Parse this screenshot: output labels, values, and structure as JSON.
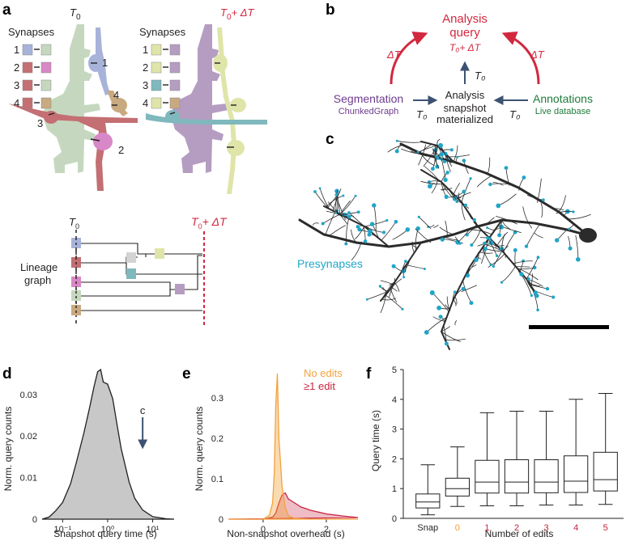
{
  "panel_letters": [
    "a",
    "b",
    "c",
    "d",
    "e",
    "f"
  ],
  "panel_a": {
    "t0_label": "T",
    "t0_sub": "0",
    "t1_label": "T",
    "t1_sub": "0",
    "t1_suffix": "+ ΔT",
    "synapses_title": "Synapses",
    "synapse_numbers": [
      "1",
      "2",
      "3",
      "4"
    ],
    "neuron_callouts": [
      "1",
      "2",
      "3",
      "4"
    ],
    "lineage_label": "Lineage graph",
    "lineage_label_line1": "Lineage",
    "lineage_label_line2": "graph",
    "colors": {
      "blue": "#a7b3d9",
      "pink": "#d888c6",
      "red": "#c46f73",
      "green": "#c5d8bf",
      "tan": "#c9aa80",
      "yellow": "#dfe5a9",
      "teal": "#7fb8bd",
      "gray": "#d3d3d3",
      "purple": "#b59dc1",
      "accent": "#d2283f"
    }
  },
  "panel_b": {
    "query_line1": "Analysis",
    "query_line2": "query",
    "query_time": "T₀+ ΔT",
    "delta_left": "ΔT",
    "delta_right": "ΔT",
    "t0_top": "T₀",
    "t0_left": "T₀",
    "t0_right": "T₀",
    "seg_title": "Segmentation",
    "seg_sub": "ChunkedGraph",
    "snap_line1": "Analysis",
    "snap_line2": "snapshot",
    "snap_line3": "materialized",
    "ann_title": "Annotations",
    "ann_sub": "Live database",
    "colors": {
      "query": "#d2283f",
      "seg": "#6e3b8e",
      "ann": "#1e7b3a",
      "arrow": "#3c5272"
    }
  },
  "panel_c": {
    "presynapse_label": "Presynapses",
    "colors": {
      "neuron": "#2b2b2b",
      "presynapse": "#1fa5c7"
    }
  },
  "chart_data": [
    {
      "panel": "d",
      "type": "area",
      "xlabel": "Snapshot query time (s)",
      "ylabel": "Norm. query counts",
      "xscale": "log",
      "xticks": [
        "10⁻¹",
        "10⁰",
        "10¹"
      ],
      "xtick_values": [
        0.1,
        1,
        10
      ],
      "yticks": [
        "0",
        "0.01",
        "0.02",
        "0.03"
      ],
      "ylim": [
        0,
        0.036
      ],
      "annotation": "c",
      "annotation_x": 6,
      "series": [
        {
          "name": "snapshot queries",
          "x": [
            0.035,
            0.05,
            0.07,
            0.1,
            0.15,
            0.2,
            0.3,
            0.4,
            0.5,
            0.6,
            0.7,
            0.8,
            1.0,
            1.3,
            1.6,
            2.0,
            3.0,
            4.0,
            6.0,
            10.0,
            20.0,
            30.0
          ],
          "values": [
            0.0,
            0.0005,
            0.002,
            0.004,
            0.0085,
            0.0135,
            0.021,
            0.027,
            0.032,
            0.0355,
            0.036,
            0.033,
            0.0325,
            0.029,
            0.023,
            0.017,
            0.009,
            0.005,
            0.0022,
            0.0006,
            0.0001,
            0.0
          ]
        }
      ]
    },
    {
      "panel": "e",
      "type": "area",
      "xlabel": "Non-snapshot overhead (s)",
      "ylabel": "Norm. query counts",
      "xlim": [
        -1.1,
        3.0
      ],
      "xticks": [
        "0",
        "2"
      ],
      "xtick_values": [
        0,
        2
      ],
      "yticks": [
        "0",
        "0.1",
        "0.2",
        "0.3"
      ],
      "ylim": [
        0,
        0.37
      ],
      "legend": [
        "No edits",
        "≥1 edit"
      ],
      "series": [
        {
          "name": "No edits",
          "color": "#f3a23d",
          "x": [
            -1.1,
            0.0,
            0.2,
            0.3,
            0.35,
            0.4,
            0.45,
            0.5,
            0.55,
            0.6,
            0.7,
            0.8,
            1.0,
            1.5,
            3.0
          ],
          "values": [
            0,
            0,
            0.01,
            0.04,
            0.11,
            0.28,
            0.36,
            0.2,
            0.14,
            0.08,
            0.03,
            0.008,
            0.002,
            0,
            0
          ]
        },
        {
          "name": "≥1 edit",
          "color": "#c8233f",
          "x": [
            -1.1,
            0.0,
            0.3,
            0.4,
            0.5,
            0.6,
            0.7,
            0.8,
            0.9,
            1.0,
            1.2,
            1.5,
            2.0,
            2.5,
            3.0
          ],
          "values": [
            0,
            0,
            0.005,
            0.015,
            0.04,
            0.06,
            0.065,
            0.05,
            0.045,
            0.04,
            0.03,
            0.022,
            0.013,
            0.008,
            0.004
          ]
        }
      ]
    },
    {
      "panel": "f",
      "type": "box",
      "xlabel": "Number of edits",
      "ylabel": "Query time (s)",
      "ylim": [
        0,
        5
      ],
      "yticks": [
        "0",
        "1",
        "2",
        "3",
        "4",
        "5"
      ],
      "categories": [
        "Snap",
        "0",
        "1",
        "2",
        "3",
        "4",
        "5"
      ],
      "category_colors": [
        "#231f20",
        "#f39c2e",
        "#c8233f",
        "#c8233f",
        "#c8233f",
        "#c8233f",
        "#c8233f"
      ],
      "boxes": [
        {
          "whisker_low": 0.12,
          "q1": 0.35,
          "median": 0.55,
          "q3": 0.82,
          "whisker_high": 1.8
        },
        {
          "whisker_low": 0.4,
          "q1": 0.75,
          "median": 1.0,
          "q3": 1.35,
          "whisker_high": 2.4
        },
        {
          "whisker_low": 0.42,
          "q1": 0.85,
          "median": 1.22,
          "q3": 1.95,
          "whisker_high": 3.55
        },
        {
          "whisker_low": 0.42,
          "q1": 0.85,
          "median": 1.22,
          "q3": 1.97,
          "whisker_high": 3.6
        },
        {
          "whisker_low": 0.45,
          "q1": 0.86,
          "median": 1.22,
          "q3": 1.97,
          "whisker_high": 3.6
        },
        {
          "whisker_low": 0.45,
          "q1": 0.87,
          "median": 1.25,
          "q3": 2.1,
          "whisker_high": 4.0
        },
        {
          "whisker_low": 0.47,
          "q1": 0.92,
          "median": 1.3,
          "q3": 2.22,
          "whisker_high": 4.2
        }
      ]
    }
  ]
}
